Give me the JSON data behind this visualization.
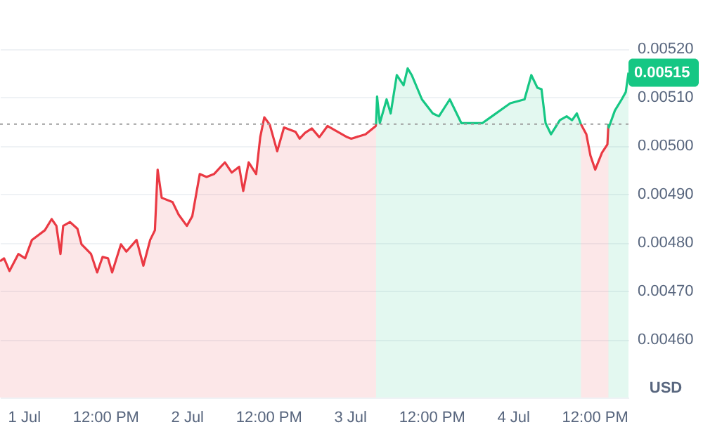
{
  "chart_data": {
    "type": "area",
    "ylabel": "USD",
    "xlim": [
      "--06-30T20:30",
      "--07-04T17:00"
    ],
    "xticks": [
      {
        "value": "--07-01",
        "label": "1 Jul"
      },
      {
        "value": "--07-01T12:00",
        "label": "12:00 PM"
      },
      {
        "value": "--07-02",
        "label": "2 Jul"
      },
      {
        "value": "--07-02T12:00",
        "label": "12:00 PM"
      },
      {
        "value": "--07-03",
        "label": "3 Jul"
      },
      {
        "value": "--07-03T12:00",
        "label": "12:00 PM"
      },
      {
        "value": "--07-04",
        "label": "4 Jul"
      },
      {
        "value": "--07-04T12:00",
        "label": "12:00 PM"
      }
    ],
    "ylim": [
      0.00448,
      0.0053
    ],
    "yticks": [
      {
        "value": 0.0046,
        "label": "0.00460"
      },
      {
        "value": 0.0047,
        "label": "0.00470"
      },
      {
        "value": 0.0048,
        "label": "0.00480"
      },
      {
        "value": 0.0049,
        "label": "0.00490"
      },
      {
        "value": 0.005,
        "label": "0.00500"
      },
      {
        "value": 0.0051,
        "label": "0.00510"
      },
      {
        "value": 0.0052,
        "label": "0.00520"
      }
    ],
    "grid": "y",
    "legend": false,
    "ref_lines": [
      {
        "axis": "y",
        "value": 0.005044,
        "color": "#9e9e9e",
        "line_style": "dotted"
      }
    ],
    "annotations": [
      {
        "text": "0.00515",
        "x": "--07-04T17:00",
        "y": 0.00515
      }
    ],
    "series": [
      {
        "color": "#ea3943",
        "x": [
          "--06-30T20:30",
          "--06-30T21:06",
          "--06-30T21:54",
          "--06-30T23:12",
          "--07-01T00:12",
          "--07-01T01:12",
          "--07-01T03:06",
          "--07-01T04:06",
          "--07-01T04:48",
          "--07-01T05:24",
          "--07-01T05:48",
          "--07-01T06:48",
          "--07-01T07:54",
          "--07-01T08:30",
          "--07-01T09:54",
          "--07-01T10:48",
          "--07-01T11:36",
          "--07-01T12:24",
          "--07-01T13:00",
          "--07-01T14:18",
          "--07-01T15:06",
          "--07-01T16:36",
          "--07-01T17:36",
          "--07-01T18:36",
          "--07-01T19:18",
          "--07-01T19:42",
          "--07-01T20:18",
          "--07-01T21:54",
          "--07-01T22:48",
          "--07-02T00:00",
          "--07-02T00:48",
          "--07-02T01:54",
          "--07-02T02:54",
          "--07-02T04:00",
          "--07-02T05:00",
          "--07-02T05:36",
          "--07-02T06:36",
          "--07-02T07:42",
          "--07-02T08:18",
          "--07-02T09:06",
          "--07-02T10:12",
          "--07-02T10:48",
          "--07-02T11:24",
          "--07-02T12:12",
          "--07-02T13:18",
          "--07-02T14:18",
          "--07-02T16:00",
          "--07-02T16:36",
          "--07-02T17:24",
          "--07-02T18:24",
          "--07-02T19:30",
          "--07-02T20:42",
          "--07-02T23:36",
          "--07-03T00:12",
          "--07-03T02:18",
          "--07-03T03:48",
          "--07-03T03:51",
          "--07-03T16:00",
          "--07-04T10:00",
          "--07-04T10:48",
          "--07-04T11:24",
          "--07-04T12:06",
          "--07-04T13:06",
          "--07-04T13:54",
          "--07-04T14:03"
        ],
        "values": [
          0.004761,
          0.004767,
          0.004741,
          0.004776,
          0.004767,
          0.004805,
          0.004825,
          0.004848,
          0.004834,
          0.004776,
          0.004834,
          0.004842,
          0.004828,
          0.004796,
          0.004776,
          0.004738,
          0.00477,
          0.004767,
          0.004738,
          0.004796,
          0.004781,
          0.004805,
          0.004752,
          0.004805,
          0.004825,
          0.00495,
          0.004892,
          0.004883,
          0.004857,
          0.004834,
          0.004854,
          0.004941,
          0.004935,
          0.004941,
          0.004956,
          0.004965,
          0.004944,
          0.004956,
          0.004906,
          0.004965,
          0.004941,
          0.005017,
          0.005058,
          0.005043,
          0.004988,
          0.005037,
          0.005028,
          0.005014,
          0.005026,
          0.005035,
          0.005017,
          0.00504,
          0.005017,
          0.005014,
          0.005023,
          0.00504,
          0.005044,
          null,
          0.005044,
          0.005023,
          0.004979,
          0.00495,
          0.004985,
          0.005002,
          0.005044
        ]
      },
      {
        "color": "#16c784",
        "x": [
          "--07-03T03:51",
          "--07-03T04:00",
          "--07-03T04:24",
          "--07-03T05:24",
          "--07-03T06:00",
          "--07-03T06:54",
          "--07-03T07:54",
          "--07-03T08:30",
          "--07-03T09:06",
          "--07-03T10:36",
          "--07-03T12:12",
          "--07-03T13:06",
          "--07-03T14:42",
          "--07-03T16:24",
          "--07-03T18:18",
          "--07-03T19:30",
          "--07-03T20:54",
          "--07-03T23:36",
          "--07-04T01:42",
          "--07-04T02:42",
          "--07-04T03:36",
          "--07-04T04:12",
          "--07-04T04:48",
          "--07-04T05:36",
          "--07-04T06:54",
          "--07-04T07:54",
          "--07-04T08:42",
          "--07-04T09:24",
          "--07-04T10:00",
          "--07-04T12:00",
          "--07-04T14:03",
          "--07-04T14:06",
          "--07-04T15:00",
          "--07-04T16:00",
          "--07-04T16:36",
          "--07-04T17:00"
        ],
        "values": [
          0.005044,
          0.005101,
          0.005046,
          0.005095,
          0.005066,
          0.005145,
          0.005124,
          0.005159,
          0.005145,
          0.005095,
          0.005066,
          0.00506,
          0.005095,
          0.005046,
          0.005046,
          0.005046,
          0.00506,
          0.005087,
          0.005095,
          0.005145,
          0.005119,
          0.005116,
          0.005046,
          0.005023,
          0.005052,
          0.00506,
          0.005052,
          0.005066,
          0.005044,
          null,
          0.005044,
          0.005037,
          0.005072,
          0.005095,
          0.00511,
          0.00515
        ]
      }
    ]
  }
}
